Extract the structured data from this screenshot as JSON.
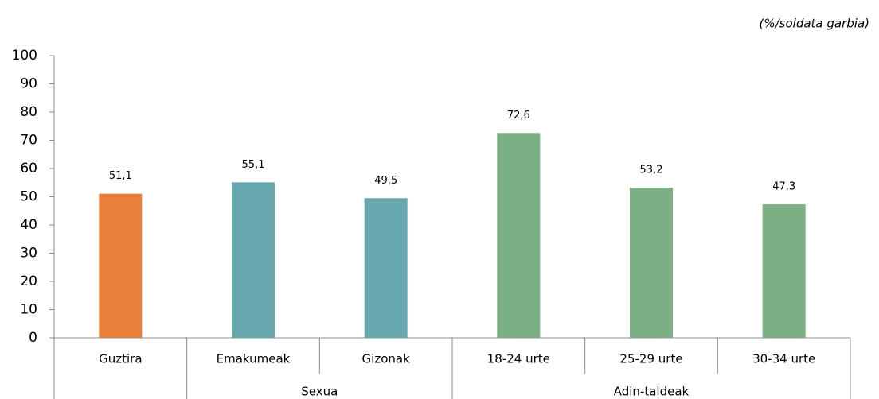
{
  "chart_data": {
    "type": "bar",
    "note": "(%/soldata garbia)",
    "categories": [
      "Guztira",
      "Emakumeak",
      "Gizonak",
      "18-24 urte",
      "25-29 urte",
      "30-34 urte"
    ],
    "values": [
      51.1,
      55.1,
      49.5,
      72.6,
      53.2,
      47.3
    ],
    "value_labels": [
      "51,1",
      "55,1",
      "49,5",
      "72,6",
      "53,2",
      "47,3"
    ],
    "colors": [
      "#e8803a",
      "#66a8ad",
      "#66a8ad",
      "#7baf84",
      "#7baf84",
      "#7baf84"
    ],
    "groups": [
      {
        "label": "Sexua",
        "start": 1,
        "end": 2
      },
      {
        "label": "Adin-taldeak",
        "start": 3,
        "end": 5
      }
    ],
    "ylim": [
      0,
      100
    ],
    "yticks": [
      0,
      10,
      20,
      30,
      40,
      50,
      60,
      70,
      80,
      90,
      100
    ],
    "grid": false
  }
}
